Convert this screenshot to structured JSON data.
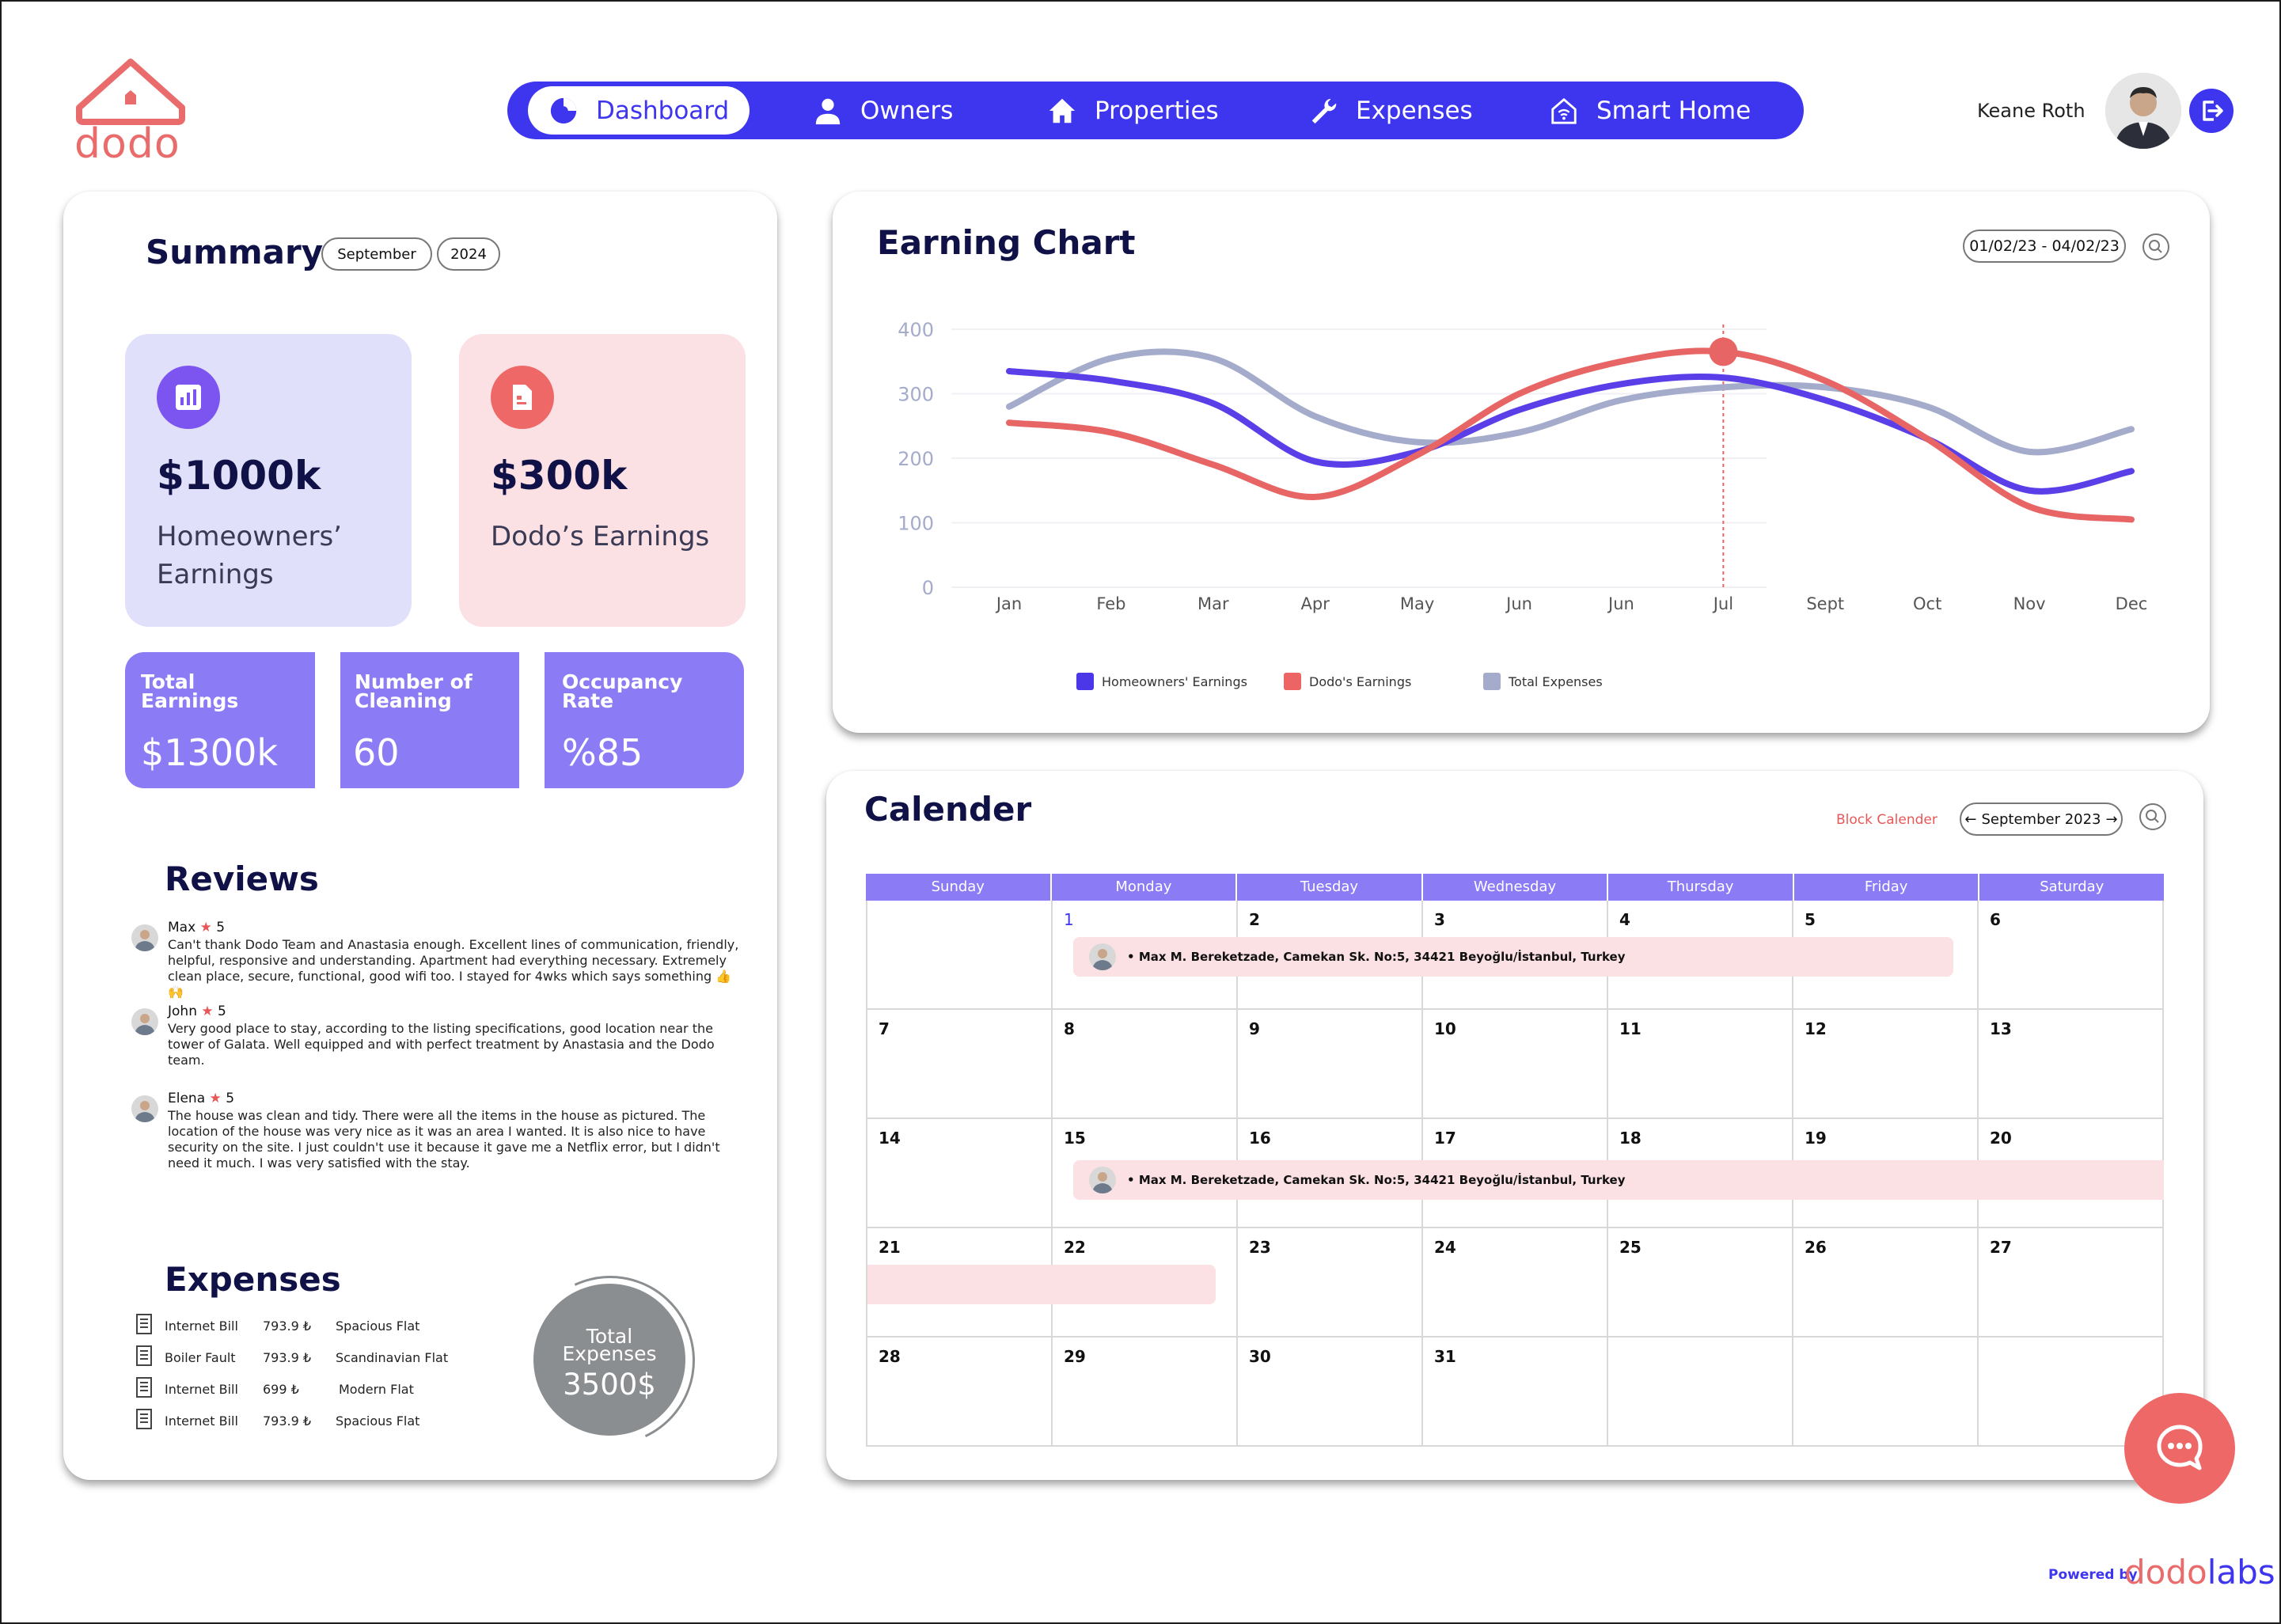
{
  "brand": {
    "name": "dodo",
    "color": "#ea6b6b",
    "accent": "#3e36ee"
  },
  "nav": {
    "items": [
      {
        "label": "Dashboard",
        "icon": "pie-chart-icon"
      },
      {
        "label": "Owners",
        "icon": "user-icon"
      },
      {
        "label": "Properties",
        "icon": "home-icon"
      },
      {
        "label": "Expenses",
        "icon": "wrench-icon"
      },
      {
        "label": "Smart Home",
        "icon": "smart-home-icon"
      }
    ],
    "active": "Dashboard"
  },
  "user": {
    "name": "Keane Roth"
  },
  "summary": {
    "title": "Summary",
    "month": "September",
    "year": "2024",
    "homeowners": {
      "value": "$1000k",
      "label": "Homeowners’ Earnings"
    },
    "dodo": {
      "value": "$300k",
      "label": "Dodo’s Earnings"
    },
    "stats": [
      {
        "label": "Total Earnings",
        "value": "$1300k"
      },
      {
        "label": "Number of Cleaning",
        "value": "60"
      },
      {
        "label": "Occupancy Rate",
        "value": "%85"
      }
    ]
  },
  "reviews": {
    "title": "Reviews",
    "items": [
      {
        "name": "Max",
        "star": "★",
        "rating": "5",
        "text": "Can't thank Dodo Team and Anastasia enough. Excellent lines of communication, friendly, helpful, responsive and understanding. Apartment had everything necessary. Extremely clean place, secure, functional, good wifi too. I stayed for 4wks which says something 👍🙌"
      },
      {
        "name": "John",
        "star": "★",
        "rating": "5",
        "text": "Very good place to stay, according to the listing specifications, good location near the tower of Galata. Well equipped and with perfect treatment by Anastasia and the Dodo team."
      },
      {
        "name": "Elena",
        "star": "★",
        "rating": "5",
        "text": "The house was clean and tidy. There were all the items in the house as pictured. The location of the house was very nice as it was an area I wanted. It is also nice to have security on the site. I just couldn't use it because it gave me a Netflix error, but I didn't need it much. I was very satisfied with the stay."
      }
    ]
  },
  "expenses": {
    "title": "Expenses",
    "items": [
      {
        "name": "Internet Bill",
        "amount": "793.9 ₺",
        "property": "Spacious Flat"
      },
      {
        "name": "Boiler Fault",
        "amount": "793.9 ₺",
        "property": "Scandinavian Flat"
      },
      {
        "name": "Internet Bill",
        "amount": "699 ₺",
        "property": "Modern Flat"
      },
      {
        "name": "Internet Bill",
        "amount": "793.9 ₺",
        "property": "Spacious Flat"
      }
    ],
    "total_label_1": "Total",
    "total_label_2": "Expenses",
    "total_value": "3500$"
  },
  "chart": {
    "title": "Earning Chart",
    "date_range": "01/02/23 - 04/02/23"
  },
  "chart_data": {
    "type": "line",
    "categories": [
      "Jan",
      "Feb",
      "Mar",
      "Apr",
      "May",
      "Jun",
      "Jun",
      "Jul",
      "Sept",
      "Oct",
      "Nov",
      "Dec"
    ],
    "ylim": [
      0,
      400
    ],
    "yticks": [
      "400",
      "300",
      "200",
      "100",
      "0"
    ],
    "highlight_category": "Jul",
    "series": [
      {
        "name": "Homeowners' Earnings",
        "color": "#5a3fe8",
        "values": [
          335,
          320,
          285,
          195,
          210,
          275,
          315,
          325,
          290,
          230,
          150,
          180
        ]
      },
      {
        "name": "Dodo's Earnings",
        "color": "#e86565",
        "values": [
          255,
          240,
          190,
          140,
          205,
          300,
          350,
          365,
          320,
          230,
          125,
          105
        ]
      },
      {
        "name": "Total Expenses",
        "color": "#a4abcb",
        "values": [
          280,
          355,
          355,
          265,
          225,
          240,
          290,
          310,
          310,
          280,
          210,
          245
        ]
      }
    ]
  },
  "calendar": {
    "title": "Calender",
    "block_label": "Block Calender",
    "month": "September 2023",
    "days": [
      "Sunday",
      "Monday",
      "Tuesday",
      "Wednesday",
      "Thursday",
      "Friday",
      "Saturday"
    ],
    "weeks": [
      [
        "",
        "1",
        "2",
        "3",
        "4",
        "5",
        "6"
      ],
      [
        "7",
        "8",
        "9",
        "10",
        "11",
        "12",
        "13"
      ],
      [
        "14",
        "15",
        "16",
        "17",
        "18",
        "19",
        "20"
      ],
      [
        "21",
        "22",
        "23",
        "24",
        "25",
        "26",
        "27"
      ],
      [
        "28",
        "29",
        "30",
        "31",
        "",
        "",
        ""
      ]
    ],
    "booking_1": "Max M. Bereketzade, Camekan Sk. No:5, 34421 Beyoğlu/İstanbul, Turkey",
    "booking_2": "Max M. Bereketzade, Camekan Sk. No:5, 34421 Beyoğlu/İstanbul, Turkey"
  },
  "footer": {
    "powered_by": "Powered by",
    "brand_a": "dodo",
    "brand_b": "labs"
  }
}
